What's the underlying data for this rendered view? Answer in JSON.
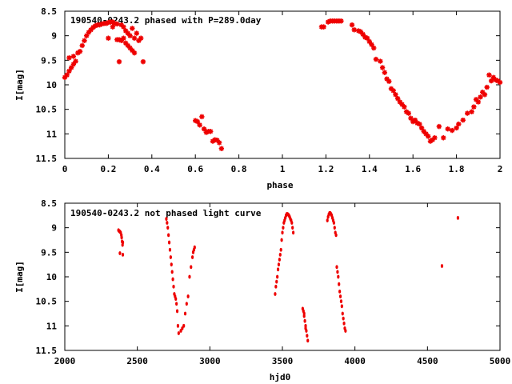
{
  "chart_data": [
    {
      "type": "scatter",
      "title": "190540-0243.2 phased with P=289.0day",
      "xlabel": "phase",
      "ylabel": "I[mag]",
      "xlim": [
        0,
        2
      ],
      "ylim": [
        11.5,
        8.5
      ],
      "y_inverted": true,
      "grid": false,
      "marker": "star",
      "color": "#ee0000",
      "xticks": [
        "0",
        "0.2",
        "0.4",
        "0.6",
        "0.8",
        "1",
        "1.2",
        "1.4",
        "1.6",
        "1.8",
        "2"
      ],
      "yticks": [
        "8.5",
        "9",
        "9.5",
        "10",
        "10.5",
        "11",
        "11.5"
      ],
      "points": [
        [
          0.0,
          9.85
        ],
        [
          0.01,
          9.8
        ],
        [
          0.02,
          9.72
        ],
        [
          0.02,
          9.45
        ],
        [
          0.03,
          9.65
        ],
        [
          0.04,
          9.58
        ],
        [
          0.04,
          9.42
        ],
        [
          0.05,
          9.52
        ],
        [
          0.06,
          9.35
        ],
        [
          0.07,
          9.32
        ],
        [
          0.08,
          9.2
        ],
        [
          0.09,
          9.1
        ],
        [
          0.1,
          9.0
        ],
        [
          0.11,
          8.93
        ],
        [
          0.12,
          8.88
        ],
        [
          0.13,
          8.83
        ],
        [
          0.14,
          8.8
        ],
        [
          0.15,
          8.78
        ],
        [
          0.16,
          8.78
        ],
        [
          0.17,
          8.76
        ],
        [
          0.18,
          8.75
        ],
        [
          0.19,
          8.75
        ],
        [
          0.2,
          8.73
        ],
        [
          0.21,
          8.72
        ],
        [
          0.22,
          8.72
        ],
        [
          0.23,
          8.75
        ],
        [
          0.24,
          8.76
        ],
        [
          0.2,
          9.05
        ],
        [
          0.22,
          8.82
        ],
        [
          0.24,
          9.08
        ],
        [
          0.25,
          9.08
        ],
        [
          0.25,
          9.53
        ],
        [
          0.26,
          8.78
        ],
        [
          0.26,
          9.1
        ],
        [
          0.27,
          8.82
        ],
        [
          0.27,
          9.05
        ],
        [
          0.28,
          8.9
        ],
        [
          0.28,
          9.15
        ],
        [
          0.29,
          8.95
        ],
        [
          0.29,
          9.2
        ],
        [
          0.3,
          9.0
        ],
        [
          0.3,
          9.25
        ],
        [
          0.31,
          8.85
        ],
        [
          0.31,
          9.3
        ],
        [
          0.32,
          9.05
        ],
        [
          0.32,
          9.35
        ],
        [
          0.33,
          8.95
        ],
        [
          0.34,
          9.1
        ],
        [
          0.35,
          9.05
        ],
        [
          0.36,
          9.53
        ],
        [
          0.6,
          10.73
        ],
        [
          0.61,
          10.75
        ],
        [
          0.62,
          10.82
        ],
        [
          0.63,
          10.65
        ],
        [
          0.64,
          10.9
        ],
        [
          0.65,
          10.97
        ],
        [
          0.66,
          10.95
        ],
        [
          0.67,
          10.95
        ],
        [
          0.68,
          11.15
        ],
        [
          0.69,
          11.12
        ],
        [
          0.7,
          11.13
        ],
        [
          0.71,
          11.18
        ],
        [
          0.72,
          11.3
        ],
        [
          1.18,
          8.82
        ],
        [
          1.19,
          8.82
        ],
        [
          1.21,
          8.72
        ],
        [
          1.22,
          8.7
        ],
        [
          1.23,
          8.7
        ],
        [
          1.24,
          8.7
        ],
        [
          1.25,
          8.7
        ],
        [
          1.26,
          8.7
        ],
        [
          1.27,
          8.7
        ],
        [
          1.32,
          8.78
        ],
        [
          1.33,
          8.88
        ],
        [
          1.35,
          8.9
        ],
        [
          1.36,
          8.92
        ],
        [
          1.37,
          8.97
        ],
        [
          1.38,
          9.03
        ],
        [
          1.39,
          9.05
        ],
        [
          1.4,
          9.12
        ],
        [
          1.41,
          9.18
        ],
        [
          1.42,
          9.25
        ],
        [
          1.43,
          9.48
        ],
        [
          1.45,
          9.52
        ],
        [
          1.46,
          9.65
        ],
        [
          1.47,
          9.75
        ],
        [
          1.48,
          9.88
        ],
        [
          1.49,
          9.93
        ],
        [
          1.5,
          10.08
        ],
        [
          1.51,
          10.12
        ],
        [
          1.52,
          10.2
        ],
        [
          1.53,
          10.28
        ],
        [
          1.54,
          10.35
        ],
        [
          1.55,
          10.4
        ],
        [
          1.56,
          10.45
        ],
        [
          1.57,
          10.55
        ],
        [
          1.58,
          10.58
        ],
        [
          1.59,
          10.68
        ],
        [
          1.6,
          10.75
        ],
        [
          1.61,
          10.72
        ],
        [
          1.62,
          10.78
        ],
        [
          1.63,
          10.8
        ],
        [
          1.64,
          10.88
        ],
        [
          1.65,
          10.95
        ],
        [
          1.66,
          11.0
        ],
        [
          1.67,
          11.05
        ],
        [
          1.68,
          11.15
        ],
        [
          1.69,
          11.12
        ],
        [
          1.7,
          11.08
        ],
        [
          1.72,
          10.85
        ],
        [
          1.74,
          11.08
        ],
        [
          1.76,
          10.9
        ],
        [
          1.78,
          10.93
        ],
        [
          1.8,
          10.88
        ],
        [
          1.81,
          10.8
        ],
        [
          1.83,
          10.72
        ],
        [
          1.85,
          10.58
        ],
        [
          1.87,
          10.55
        ],
        [
          1.88,
          10.45
        ],
        [
          1.89,
          10.3
        ],
        [
          1.9,
          10.35
        ],
        [
          1.91,
          10.25
        ],
        [
          1.92,
          10.15
        ],
        [
          1.93,
          10.2
        ],
        [
          1.94,
          10.05
        ],
        [
          1.95,
          9.8
        ],
        [
          1.96,
          9.92
        ],
        [
          1.97,
          9.85
        ],
        [
          1.98,
          9.9
        ],
        [
          1.99,
          9.92
        ],
        [
          2.0,
          9.95
        ]
      ]
    },
    {
      "type": "scatter",
      "title": "190540-0243.2 not phased light curve",
      "xlabel": "hjd0",
      "ylabel": "I[mag]",
      "xlim": [
        2000,
        5000
      ],
      "ylim": [
        11.5,
        8.5
      ],
      "y_inverted": true,
      "grid": false,
      "marker": "dot",
      "color": "#ee0000",
      "xticks": [
        "2000",
        "2500",
        "3000",
        "3500",
        "4000",
        "4500",
        "5000"
      ],
      "yticks": [
        "8.5",
        "9",
        "9.5",
        "10",
        "10.5",
        "11",
        "11.5"
      ],
      "points": [
        [
          2370,
          9.05
        ],
        [
          2375,
          9.07
        ],
        [
          2380,
          9.08
        ],
        [
          2385,
          9.1
        ],
        [
          2390,
          9.15
        ],
        [
          2392,
          9.2
        ],
        [
          2395,
          9.28
        ],
        [
          2398,
          9.35
        ],
        [
          2400,
          9.3
        ],
        [
          2380,
          9.52
        ],
        [
          2400,
          9.55
        ],
        [
          2700,
          8.82
        ],
        [
          2705,
          8.9
        ],
        [
          2710,
          9.0
        ],
        [
          2715,
          9.15
        ],
        [
          2720,
          9.3
        ],
        [
          2725,
          9.45
        ],
        [
          2730,
          9.6
        ],
        [
          2735,
          9.75
        ],
        [
          2740,
          9.9
        ],
        [
          2745,
          10.05
        ],
        [
          2750,
          10.2
        ],
        [
          2755,
          10.35
        ],
        [
          2760,
          10.4
        ],
        [
          2765,
          10.45
        ],
        [
          2770,
          10.55
        ],
        [
          2775,
          10.7
        ],
        [
          2780,
          11.0
        ],
        [
          2785,
          11.15
        ],
        [
          2800,
          11.1
        ],
        [
          2810,
          11.05
        ],
        [
          2820,
          11.0
        ],
        [
          2830,
          10.75
        ],
        [
          2840,
          10.55
        ],
        [
          2850,
          10.4
        ],
        [
          2860,
          10.0
        ],
        [
          2870,
          9.8
        ],
        [
          2880,
          9.6
        ],
        [
          2885,
          9.5
        ],
        [
          2890,
          9.45
        ],
        [
          2895,
          9.4
        ],
        [
          3450,
          10.35
        ],
        [
          3455,
          10.2
        ],
        [
          3460,
          10.1
        ],
        [
          3465,
          10.0
        ],
        [
          3470,
          9.85
        ],
        [
          3475,
          9.75
        ],
        [
          3480,
          9.65
        ],
        [
          3485,
          9.55
        ],
        [
          3490,
          9.45
        ],
        [
          3495,
          9.25
        ],
        [
          3500,
          9.1
        ],
        [
          3505,
          9.0
        ],
        [
          3510,
          8.9
        ],
        [
          3515,
          8.85
        ],
        [
          3520,
          8.8
        ],
        [
          3525,
          8.75
        ],
        [
          3530,
          8.72
        ],
        [
          3535,
          8.72
        ],
        [
          3540,
          8.73
        ],
        [
          3545,
          8.75
        ],
        [
          3550,
          8.78
        ],
        [
          3555,
          8.82
        ],
        [
          3560,
          8.85
        ],
        [
          3565,
          8.9
        ],
        [
          3570,
          9.0
        ],
        [
          3575,
          9.1
        ],
        [
          3640,
          10.65
        ],
        [
          3645,
          10.7
        ],
        [
          3650,
          10.8
        ],
        [
          3655,
          10.9
        ],
        [
          3660,
          11.0
        ],
        [
          3665,
          11.1
        ],
        [
          3670,
          11.2
        ],
        [
          3675,
          11.3
        ],
        [
          3650,
          10.75
        ],
        [
          3660,
          11.05
        ],
        [
          3810,
          8.85
        ],
        [
          3815,
          8.78
        ],
        [
          3820,
          8.73
        ],
        [
          3825,
          8.7
        ],
        [
          3830,
          8.7
        ],
        [
          3835,
          8.72
        ],
        [
          3840,
          8.75
        ],
        [
          3845,
          8.8
        ],
        [
          3850,
          8.85
        ],
        [
          3855,
          8.9
        ],
        [
          3860,
          9.0
        ],
        [
          3865,
          9.1
        ],
        [
          3870,
          9.15
        ],
        [
          3875,
          9.8
        ],
        [
          3880,
          9.9
        ],
        [
          3885,
          10.0
        ],
        [
          3890,
          10.15
        ],
        [
          3895,
          10.3
        ],
        [
          3900,
          10.4
        ],
        [
          3905,
          10.5
        ],
        [
          3910,
          10.6
        ],
        [
          3915,
          10.75
        ],
        [
          3920,
          10.85
        ],
        [
          3925,
          10.95
        ],
        [
          3930,
          11.05
        ],
        [
          3935,
          11.1
        ],
        [
          4600,
          9.78
        ],
        [
          4710,
          8.8
        ]
      ]
    }
  ]
}
